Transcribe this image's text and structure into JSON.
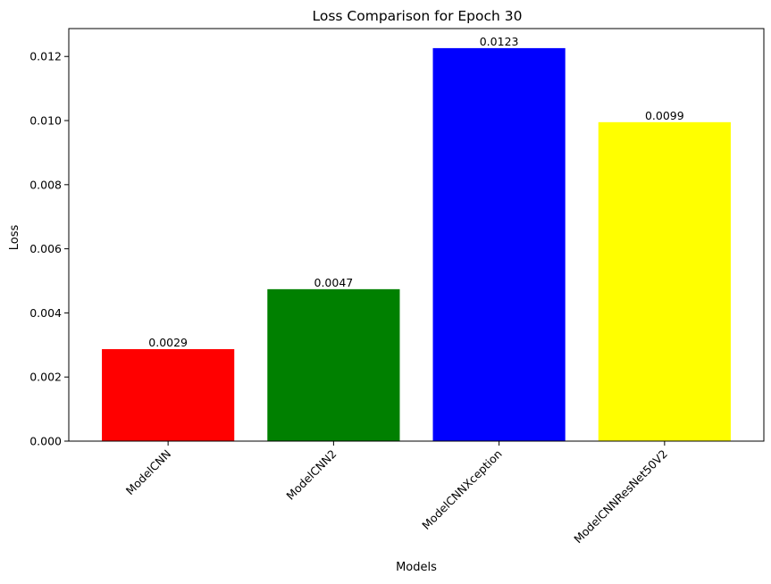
{
  "chart_data": {
    "type": "bar",
    "title": "Loss Comparison for Epoch 30",
    "xlabel": "Models",
    "ylabel": "Loss",
    "categories": [
      "ModelCNN",
      "ModelCNN2",
      "ModelCNNXception",
      "ModelCNNResNet50V2"
    ],
    "values": [
      0.00287,
      0.00474,
      0.01226,
      0.00995
    ],
    "value_labels": [
      "0.0029",
      "0.0047",
      "0.0123",
      "0.0099"
    ],
    "colors": [
      "#ff0000",
      "#008000",
      "#0000ff",
      "#ffff00"
    ],
    "ylim": [
      0,
      0.01287
    ],
    "yticks": [
      0,
      0.002,
      0.004,
      0.006,
      0.008,
      0.01,
      0.012
    ],
    "ytick_labels": [
      "0.000",
      "0.002",
      "0.004",
      "0.006",
      "0.008",
      "0.010",
      "0.012"
    ],
    "grid": false,
    "legend": "none",
    "x_tick_rotation_deg": 45
  }
}
